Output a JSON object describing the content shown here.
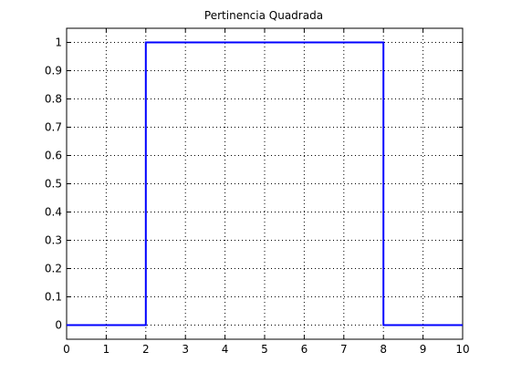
{
  "chart_data": {
    "type": "line",
    "title": "Pertinencia Quadrada",
    "xlabel": "",
    "ylabel": "",
    "xlim": [
      0,
      10
    ],
    "ylim": [
      -0.05,
      1.05
    ],
    "grid": true,
    "x_ticks": [
      0,
      1,
      2,
      3,
      4,
      5,
      6,
      7,
      8,
      9,
      10
    ],
    "y_ticks": [
      0,
      0.1,
      0.2,
      0.3,
      0.4,
      0.5,
      0.6,
      0.7,
      0.8,
      0.9,
      1
    ],
    "x_tick_labels": [
      "0",
      "1",
      "2",
      "3",
      "4",
      "5",
      "6",
      "7",
      "8",
      "9",
      "10"
    ],
    "y_tick_labels": [
      "0",
      "0.1",
      "0.2",
      "0.3",
      "0.4",
      "0.5",
      "0.6",
      "0.7",
      "0.8",
      "0.9",
      "1"
    ],
    "series": [
      {
        "color": "#0000ff",
        "x": [
          0,
          2,
          2,
          8,
          8,
          10
        ],
        "y": [
          0,
          0,
          1,
          1,
          0,
          0
        ]
      }
    ]
  }
}
